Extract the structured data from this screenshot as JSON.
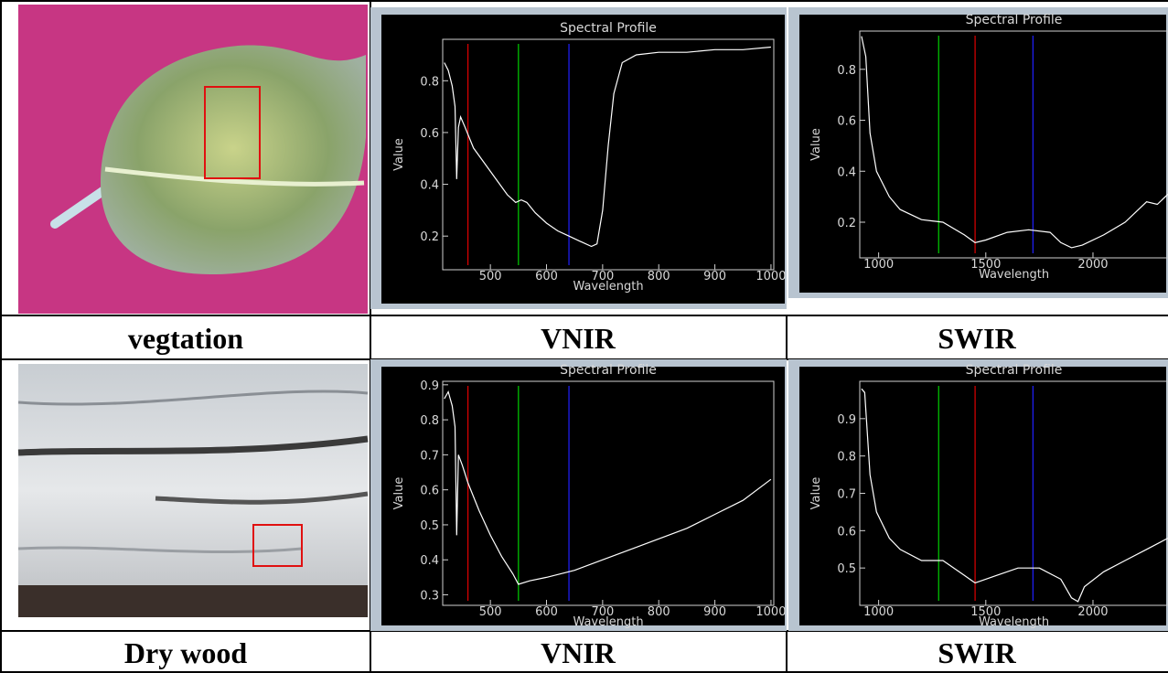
{
  "table": {
    "labels": [
      "vegtation",
      "VNIR",
      "SWIR",
      "Dry wood",
      "VNIR",
      "SWIR"
    ]
  },
  "chart_data": [
    {
      "type": "line",
      "title": "Spectral Profile",
      "x_label": "Wavelength",
      "y_label": "Value",
      "xlim": [
        415,
        1005
      ],
      "ylim": [
        0.07,
        0.96
      ],
      "xticks": [
        500,
        600,
        700,
        800,
        900,
        1000
      ],
      "yticks": [
        0.2,
        0.4,
        0.6,
        0.8
      ],
      "x": [
        418,
        425,
        432,
        437,
        440,
        443,
        447,
        455,
        470,
        490,
        510,
        530,
        545,
        555,
        565,
        580,
        600,
        620,
        640,
        660,
        680,
        690,
        700,
        710,
        720,
        735,
        760,
        800,
        850,
        900,
        950,
        1000
      ],
      "series": [
        {
          "color": "#ffffff",
          "values": [
            0.87,
            0.84,
            0.78,
            0.7,
            0.42,
            0.62,
            0.66,
            0.62,
            0.54,
            0.48,
            0.42,
            0.36,
            0.33,
            0.34,
            0.33,
            0.29,
            0.25,
            0.22,
            0.2,
            0.18,
            0.16,
            0.17,
            0.3,
            0.55,
            0.75,
            0.87,
            0.9,
            0.91,
            0.91,
            0.92,
            0.92,
            0.93
          ]
        }
      ],
      "band_markers": [
        {
          "x": 460,
          "color": "#e00000"
        },
        {
          "x": 550,
          "color": "#00d000"
        },
        {
          "x": 640,
          "color": "#2020ff"
        }
      ]
    },
    {
      "type": "line",
      "title": "Spectral Profile",
      "x_label": "Wavelength",
      "y_label": "Value",
      "xlim": [
        912,
        2350
      ],
      "ylim": [
        0.06,
        0.95
      ],
      "xticks": [
        1000,
        1500,
        2000
      ],
      "yticks": [
        0.2,
        0.4,
        0.6,
        0.8
      ],
      "x": [
        920,
        940,
        960,
        990,
        1050,
        1100,
        1200,
        1300,
        1400,
        1450,
        1500,
        1600,
        1700,
        1800,
        1850,
        1900,
        1950,
        2050,
        2150,
        2250,
        2300,
        2350
      ],
      "series": [
        {
          "color": "#ffffff",
          "values": [
            0.93,
            0.85,
            0.55,
            0.4,
            0.3,
            0.25,
            0.21,
            0.2,
            0.15,
            0.12,
            0.13,
            0.16,
            0.17,
            0.16,
            0.12,
            0.1,
            0.11,
            0.15,
            0.2,
            0.28,
            0.27,
            0.31
          ]
        }
      ],
      "band_markers": [
        {
          "x": 1280,
          "color": "#00d000"
        },
        {
          "x": 1450,
          "color": "#e00000"
        },
        {
          "x": 1720,
          "color": "#2020ff"
        }
      ]
    },
    {
      "type": "line",
      "title": "Spectral Profile",
      "x_label": "Wavelength",
      "y_label": "Value",
      "xlim": [
        415,
        1005
      ],
      "ylim": [
        0.27,
        0.91
      ],
      "xticks": [
        500,
        600,
        700,
        800,
        900,
        1000
      ],
      "yticks": [
        0.3,
        0.4,
        0.5,
        0.6,
        0.7,
        0.8,
        0.9
      ],
      "x": [
        418,
        425,
        432,
        437,
        440,
        443,
        450,
        460,
        480,
        500,
        520,
        540,
        550,
        570,
        600,
        650,
        700,
        750,
        800,
        850,
        900,
        950,
        1000
      ],
      "series": [
        {
          "color": "#ffffff",
          "values": [
            0.86,
            0.88,
            0.84,
            0.78,
            0.47,
            0.7,
            0.67,
            0.62,
            0.54,
            0.47,
            0.41,
            0.36,
            0.33,
            0.34,
            0.35,
            0.37,
            0.4,
            0.43,
            0.46,
            0.49,
            0.53,
            0.57,
            0.63
          ]
        }
      ],
      "band_markers": [
        {
          "x": 460,
          "color": "#e00000"
        },
        {
          "x": 550,
          "color": "#00d000"
        },
        {
          "x": 640,
          "color": "#2020ff"
        }
      ]
    },
    {
      "type": "line",
      "title": "Spectral Profile",
      "x_label": "Wavelength",
      "y_label": "Value",
      "xlim": [
        912,
        2350
      ],
      "ylim": [
        0.4,
        1.0
      ],
      "xticks": [
        1000,
        1500,
        2000
      ],
      "yticks": [
        0.5,
        0.6,
        0.7,
        0.8,
        0.9
      ],
      "x": [
        920,
        935,
        960,
        990,
        1050,
        1100,
        1200,
        1300,
        1400,
        1450,
        1550,
        1650,
        1750,
        1850,
        1900,
        1930,
        1960,
        2050,
        2150,
        2250,
        2350
      ],
      "series": [
        {
          "color": "#ffffff",
          "values": [
            0.98,
            0.97,
            0.75,
            0.65,
            0.58,
            0.55,
            0.52,
            0.52,
            0.48,
            0.46,
            0.48,
            0.5,
            0.5,
            0.47,
            0.42,
            0.41,
            0.45,
            0.49,
            0.52,
            0.55,
            0.58
          ]
        }
      ],
      "band_markers": [
        {
          "x": 1280,
          "color": "#00d000"
        },
        {
          "x": 1450,
          "color": "#e00000"
        },
        {
          "x": 1720,
          "color": "#2020ff"
        }
      ]
    }
  ]
}
